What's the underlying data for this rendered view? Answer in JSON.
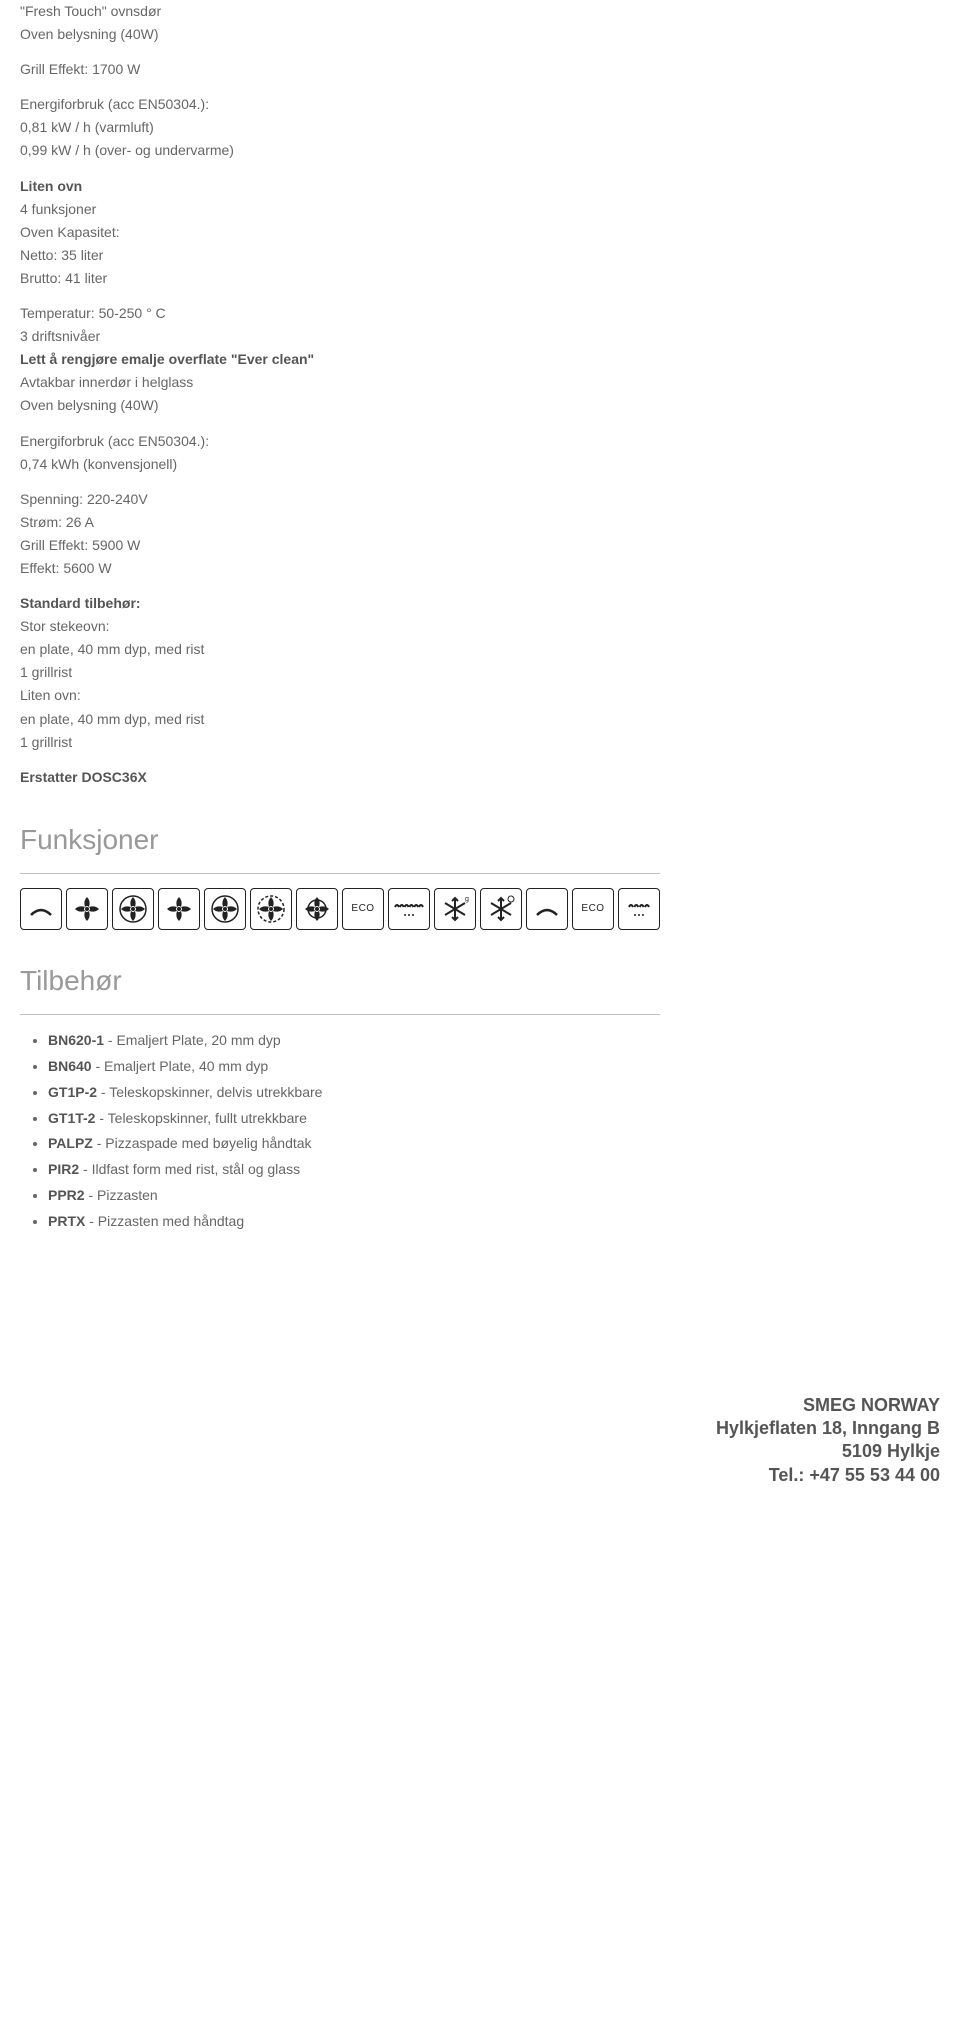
{
  "specs_top": {
    "line1": "\"Fresh Touch\" ovnsdør",
    "line2": "Oven belysning (40W)",
    "line3": "Grill Effekt: 1700 W",
    "energy_label": "Energiforbruk (acc EN50304.):",
    "energy_1": "0,81 kW / h (varmluft)",
    "energy_2": "0,99 kW / h (over- og undervarme)",
    "small_oven_header": "Liten ovn",
    "funcs": "4 funksjoner",
    "capacity_label": "Oven Kapasitet:",
    "capacity_net": "Netto: 35 liter",
    "capacity_gross": "Brutto: 41 liter",
    "temp": "Temperatur: 50-250 ° C",
    "levels": "3 driftsnivåer",
    "easy_clean": "Lett å rengjøre emalje overflate \"Ever clean\"",
    "door": "Avtakbar innerdør i helglass",
    "light": "Oven belysning (40W)",
    "energy2_label": "Energiforbruk (acc EN50304.):",
    "energy2_val": "0,74 kWh (konvensjonell)",
    "voltage": "Spenning: 220-240V",
    "current": "Strøm: 26 A",
    "grill": "Grill Effekt: 5900 W",
    "power": "Effekt: 5600 W",
    "std_acc_label": "Standard tilbehør:",
    "std1": "Stor stekeovn:",
    "std2": "en plate, 40 mm dyp, med rist",
    "std3": "1 grillrist",
    "std4": "Liten ovn:",
    "std5": "en plate, 40 mm dyp, med rist",
    "std6": "1 grillrist",
    "replaces": "Erstatter DOSC36X"
  },
  "sections": {
    "functions": "Funksjoner",
    "accessories": "Tilbehør"
  },
  "icons": [
    {
      "name": "bottom-heat",
      "type": "arc"
    },
    {
      "name": "fan-1",
      "type": "fan"
    },
    {
      "name": "fan-2",
      "type": "fan-circle"
    },
    {
      "name": "fan-3",
      "type": "fan"
    },
    {
      "name": "fan-ring",
      "type": "fan-ring"
    },
    {
      "name": "fan-dashed",
      "type": "fan-dashed"
    },
    {
      "name": "fan-inner",
      "type": "fan-inner"
    },
    {
      "name": "eco-1",
      "type": "eco",
      "label": "ECO"
    },
    {
      "name": "grill",
      "type": "grill"
    },
    {
      "name": "defrost-g",
      "type": "snow-sup",
      "sup": "g"
    },
    {
      "name": "defrost-ring",
      "type": "snow-ring"
    },
    {
      "name": "bottom-heat-2",
      "type": "arc"
    },
    {
      "name": "eco-2",
      "type": "eco",
      "label": "ECO"
    },
    {
      "name": "grill-small",
      "type": "grill-sm"
    }
  ],
  "accessories": [
    {
      "code": "BN620-1",
      "desc": " - Emaljert Plate, 20 mm dyp"
    },
    {
      "code": "BN640",
      "desc": " - Emaljert Plate, 40 mm dyp"
    },
    {
      "code": "GT1P-2",
      "desc": " - Teleskopskinner, delvis utrekkbare"
    },
    {
      "code": "GT1T-2",
      "desc": " - Teleskopskinner, fullt utrekkbare"
    },
    {
      "code": "PALPZ",
      "desc": " - Pizzaspade med bøyelig håndtak"
    },
    {
      "code": "PIR2",
      "desc": " - Ildfast form med rist, stål og glass"
    },
    {
      "code": "PPR2",
      "desc": " - Pizzasten"
    },
    {
      "code": "PRTX",
      "desc": " - Pizzasten med håndtag"
    }
  ],
  "footer": {
    "l1": "SMEG NORWAY",
    "l2": "Hylkjeflaten 18, Inngang B",
    "l3": "5109 Hylkje",
    "l4": "Tel.: +47 55 53 44 00"
  },
  "colors": {
    "text": "#666666",
    "bold": "#555555",
    "heading": "#999999",
    "divider": "#bfbfbf",
    "icon_border": "#222222",
    "background": "#ffffff"
  }
}
